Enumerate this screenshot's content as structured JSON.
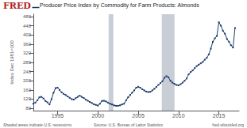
{
  "chart_data": {
    "type": "line",
    "title": "Producer Price Index by Commodity for Farm Products: Almonds",
    "ylabel": "Index Dec 1981=100",
    "color": "#1a3a6b",
    "marker": "square",
    "grid": false,
    "xlim": [
      1992.0,
      2017.5
    ],
    "xticks": [
      1995,
      2000,
      2005,
      2010,
      2015
    ],
    "ylim": [
      70,
      490
    ],
    "yticks": [
      80,
      120,
      160,
      200,
      240,
      280,
      320,
      360,
      400,
      440,
      480
    ],
    "recession_bands": [
      [
        2001.33,
        2001.92
      ],
      [
        2007.92,
        2009.5
      ]
    ],
    "recession_color": "#c8cdd6",
    "annotations": [
      {
        "text": "FRED",
        "color": "#b22222"
      },
      {
        "text": "Shaded areas indicate U.S. recessions"
      },
      {
        "text": "Source: U.S. Bureau of Labor Statistics"
      },
      {
        "text": "fred.stlouisfed.org"
      }
    ],
    "x": [
      1992.0,
      1992.25,
      1992.5,
      1992.75,
      1993.0,
      1993.25,
      1993.5,
      1993.75,
      1994.0,
      1994.25,
      1994.5,
      1994.75,
      1995.0,
      1995.25,
      1995.5,
      1995.75,
      1996.0,
      1996.25,
      1996.5,
      1996.75,
      1997.0,
      1997.25,
      1997.5,
      1997.75,
      1998.0,
      1998.25,
      1998.5,
      1998.75,
      1999.0,
      1999.25,
      1999.5,
      1999.75,
      2000.0,
      2000.25,
      2000.5,
      2000.75,
      2001.0,
      2001.25,
      2001.5,
      2001.75,
      2002.0,
      2002.25,
      2002.5,
      2002.75,
      2003.0,
      2003.25,
      2003.5,
      2003.75,
      2004.0,
      2004.25,
      2004.5,
      2004.75,
      2005.0,
      2005.25,
      2005.5,
      2005.75,
      2006.0,
      2006.25,
      2006.5,
      2006.75,
      2007.0,
      2007.25,
      2007.5,
      2007.75,
      2008.0,
      2008.25,
      2008.5,
      2008.75,
      2009.0,
      2009.25,
      2009.5,
      2009.75,
      2010.0,
      2010.25,
      2010.5,
      2010.75,
      2011.0,
      2011.25,
      2011.5,
      2011.75,
      2012.0,
      2012.25,
      2012.5,
      2012.75,
      2013.0,
      2013.25,
      2013.5,
      2013.75,
      2014.0,
      2014.25,
      2014.5,
      2014.75,
      2015.0,
      2015.25,
      2015.5,
      2015.75,
      2016.0,
      2016.25,
      2016.5,
      2016.75,
      2017.0
    ],
    "values": [
      100,
      105,
      115,
      128,
      130,
      123,
      112,
      106,
      97,
      120,
      148,
      168,
      170,
      160,
      150,
      143,
      138,
      132,
      126,
      120,
      118,
      124,
      130,
      135,
      130,
      125,
      118,
      113,
      108,
      103,
      98,
      95,
      92,
      100,
      112,
      113,
      110,
      105,
      100,
      97,
      93,
      91,
      91,
      93,
      97,
      100,
      115,
      128,
      138,
      148,
      158,
      170,
      174,
      170,
      163,
      158,
      153,
      151,
      152,
      158,
      165,
      173,
      182,
      190,
      198,
      213,
      220,
      215,
      200,
      192,
      186,
      182,
      180,
      185,
      192,
      200,
      210,
      228,
      238,
      245,
      255,
      264,
      270,
      276,
      282,
      292,
      300,
      315,
      340,
      370,
      385,
      395,
      455,
      440,
      418,
      405,
      382,
      370,
      355,
      345,
      430
    ]
  }
}
